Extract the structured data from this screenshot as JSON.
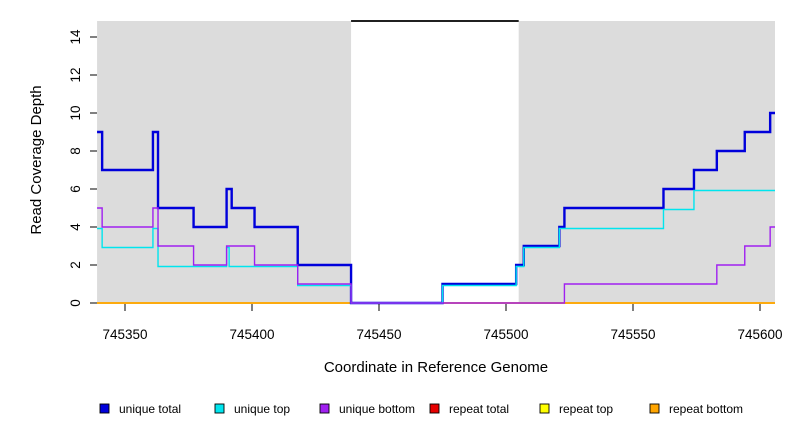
{
  "chart_data": {
    "type": "line",
    "subtype": "step-coverage-plot",
    "title": "",
    "xlabel": "Coordinate in Reference Genome",
    "ylabel": "Read Coverage Depth",
    "xlim": [
      745339,
      745606
    ],
    "ylim": [
      0,
      15
    ],
    "x_ticks": [
      745350,
      745400,
      745450,
      745500,
      745550,
      745600
    ],
    "y_ticks": [
      0,
      2,
      4,
      6,
      8,
      10,
      12,
      14
    ],
    "grid": false,
    "legend_position": "bottom",
    "colors": {
      "band": "#DCDCDC",
      "axis": "#000000",
      "gap_line": "#000000"
    },
    "background_bands": [
      {
        "from": 745339,
        "to": 745439
      },
      {
        "from": 745505,
        "to": 745606
      }
    ],
    "gap_top_line": {
      "from": 745439,
      "to": 745505,
      "y": 15
    },
    "series": [
      {
        "name": "unique total",
        "color": "#0000DB",
        "width": 2.4,
        "steps": [
          [
            745339,
            9
          ],
          [
            745341,
            7
          ],
          [
            745361,
            9
          ],
          [
            745363,
            5
          ],
          [
            745377,
            4
          ],
          [
            745390,
            6
          ],
          [
            745392,
            5
          ],
          [
            745401,
            4
          ],
          [
            745418,
            2
          ],
          [
            745439,
            0
          ],
          [
            745475,
            1
          ],
          [
            745504,
            2
          ],
          [
            745507,
            3
          ],
          [
            745521,
            4
          ],
          [
            745523,
            5
          ],
          [
            745562,
            6
          ],
          [
            745574,
            7
          ],
          [
            745583,
            8
          ],
          [
            745594,
            9
          ],
          [
            745604,
            10
          ]
        ]
      },
      {
        "name": "unique top",
        "color": "#00E5EE",
        "width": 1.4,
        "steps": [
          [
            745339,
            4
          ],
          [
            745341,
            3
          ],
          [
            745361,
            4
          ],
          [
            745363,
            2
          ],
          [
            745390,
            3
          ],
          [
            745391,
            2
          ],
          [
            745418,
            1
          ],
          [
            745439,
            0
          ],
          [
            745475,
            1
          ],
          [
            745504,
            2
          ],
          [
            745507,
            3
          ],
          [
            745521,
            4
          ],
          [
            745562,
            5
          ],
          [
            745574,
            6
          ]
        ]
      },
      {
        "name": "unique bottom",
        "color": "#A020F0",
        "width": 1.4,
        "steps": [
          [
            745339,
            5
          ],
          [
            745341,
            4
          ],
          [
            745361,
            5
          ],
          [
            745363,
            3
          ],
          [
            745377,
            2
          ],
          [
            745390,
            3
          ],
          [
            745401,
            2
          ],
          [
            745418,
            1
          ],
          [
            745439,
            0
          ],
          [
            745523,
            1
          ],
          [
            745583,
            2
          ],
          [
            745594,
            3
          ],
          [
            745604,
            4
          ]
        ]
      },
      {
        "name": "repeat total",
        "color": "#E60000",
        "width": 1.4,
        "steps": [
          [
            745339,
            0
          ]
        ]
      },
      {
        "name": "repeat top",
        "color": "#FFFF00",
        "width": 1.4,
        "steps": [
          [
            745339,
            0
          ]
        ]
      },
      {
        "name": "repeat bottom",
        "color": "#FFA500",
        "width": 1.4,
        "steps": [
          [
            745339,
            0
          ]
        ]
      }
    ],
    "legend": [
      {
        "label": "unique total",
        "color": "#0000DB"
      },
      {
        "label": "unique top",
        "color": "#00E5EE"
      },
      {
        "label": "unique bottom",
        "color": "#A020F0"
      },
      {
        "label": "repeat total",
        "color": "#E60000"
      },
      {
        "label": "repeat top",
        "color": "#FFFF00"
      },
      {
        "label": "repeat bottom",
        "color": "#FFA500"
      }
    ]
  }
}
